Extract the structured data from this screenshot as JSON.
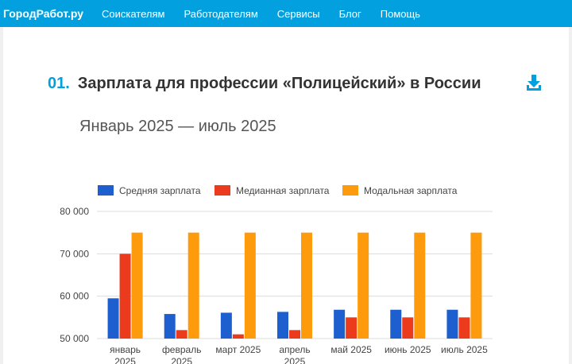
{
  "navbar": {
    "brand": "ГородРабот.ру",
    "links": [
      "Соискателям",
      "Работодателям",
      "Сервисы",
      "Блог",
      "Помощь"
    ]
  },
  "section": {
    "number": "01.",
    "title": "Зарплата для профессии «Полицейский» в России",
    "period": "Январь 2025 — июль 2025",
    "download_icon": "download-icon"
  },
  "colors": {
    "accent": "#03a0df",
    "average": "#1e5fcf",
    "median": "#ec3a1c",
    "modal": "#fd9b0c"
  },
  "chart_data": {
    "type": "bar",
    "categories": [
      [
        "январь",
        "2025"
      ],
      [
        "февраль",
        "2025"
      ],
      [
        "март 2025"
      ],
      [
        "апрель",
        "2025"
      ],
      [
        "май 2025"
      ],
      [
        "июнь 2025"
      ],
      [
        "июль 2025"
      ]
    ],
    "series": [
      {
        "name": "Средняя зарплата",
        "color": "#1e5fcf",
        "values": [
          59500,
          55800,
          56100,
          56300,
          56800,
          56800,
          56800
        ]
      },
      {
        "name": "Медианная зарплата",
        "color": "#ec3a1c",
        "values": [
          70000,
          52000,
          51000,
          52000,
          55000,
          55000,
          55000
        ]
      },
      {
        "name": "Модальная зарплата",
        "color": "#fd9b0c",
        "values": [
          75000,
          75000,
          75000,
          75000,
          75000,
          75000,
          75000
        ]
      }
    ],
    "y_ticks": [
      "50 000",
      "60 000",
      "70 000",
      "80 000"
    ],
    "y_tick_values": [
      50000,
      60000,
      70000,
      80000
    ],
    "ylim": [
      50000,
      80000
    ],
    "grid": true,
    "legend_position": "top"
  }
}
